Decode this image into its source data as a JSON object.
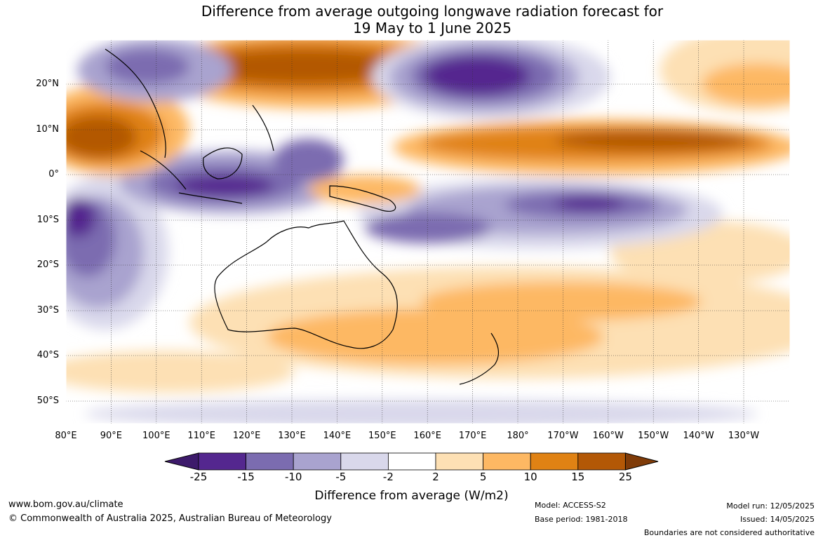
{
  "title": {
    "line1": "Difference from average outgoing longwave radiation forecast for",
    "line2": "19 May to 1 June 2025"
  },
  "latitude_labels": [
    "20°N",
    "10°N",
    "0°",
    "10°S",
    "20°S",
    "30°S",
    "40°S",
    "50°S"
  ],
  "longitude_labels": [
    "80°E",
    "90°E",
    "100°E",
    "110°E",
    "120°E",
    "130°E",
    "140°E",
    "150°E",
    "160°E",
    "170°E",
    "180°",
    "170°W",
    "160°W",
    "150°W",
    "140°W",
    "130°W"
  ],
  "colorbar": {
    "ticks": [
      "-25",
      "-15",
      "-10",
      "-5",
      "-2",
      "2",
      "5",
      "10",
      "15",
      "25"
    ],
    "colors": [
      "#3d1a6b",
      "#54278f",
      "#7b6cb0",
      "#a9a3cf",
      "#d9d8eb",
      "#ffffff",
      "#fde0b4",
      "#fdb863",
      "#e08214",
      "#b35806",
      "#7f3b08"
    ],
    "label": "Difference from average (W/m2)"
  },
  "footer": {
    "url": "www.bom.gov.au/climate",
    "copyright": "© Commonwealth of Australia 2025, Australian Bureau of Meteorology",
    "model": "Model: ACCESS-S2",
    "base_period": "Base period: 1981-2018",
    "model_run": "Model run: 12/05/2025",
    "issued": "Issued: 14/05/2025",
    "disclaimer": "Boundaries are not considered authoritative"
  }
}
